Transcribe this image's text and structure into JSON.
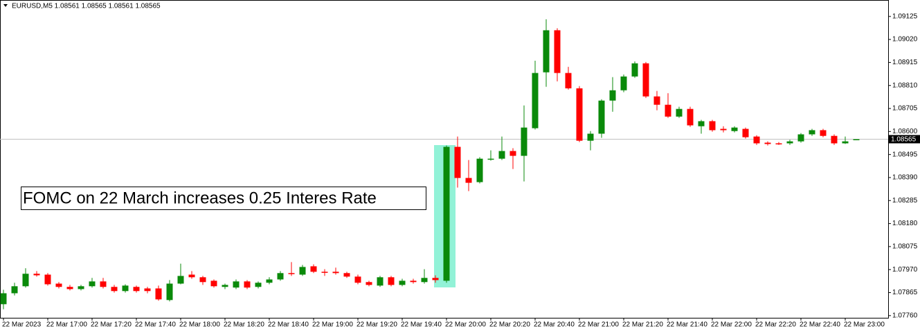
{
  "chart_data": {
    "type": "candlestick",
    "title": "EURUSD,M5  1.08561 1.08565 1.08561 1.08565",
    "annotation": "FOMC on 22 March increases 0.25 Interes Rate",
    "categories": [
      "22 Mar 2023",
      null,
      null,
      null,
      "22 Mar 17:00",
      null,
      null,
      null,
      "22 Mar 17:20",
      null,
      null,
      null,
      "22 Mar 17:40",
      null,
      null,
      null,
      "22 Mar 18:00",
      null,
      null,
      null,
      "22 Mar 18:20",
      null,
      null,
      null,
      "22 Mar 18:40",
      null,
      null,
      null,
      "22 Mar 19:00",
      null,
      null,
      null,
      "22 Mar 19:20",
      null,
      null,
      null,
      "22 Mar 19:40",
      null,
      null,
      null,
      "22 Mar 20:00",
      null,
      null,
      null,
      "22 Mar 20:20",
      null,
      null,
      null,
      "22 Mar 20:40",
      null,
      null,
      null,
      "22 Mar 21:00",
      null,
      null,
      null,
      "22 Mar 21:20",
      null,
      null,
      null,
      "22 Mar 21:40",
      null,
      null,
      null,
      "22 Mar 22:00",
      null,
      null,
      null,
      "22 Mar 22:20",
      null,
      null,
      null,
      "22 Mar 22:40",
      null,
      null,
      null,
      "22 Mar 23:00",
      null
    ],
    "open": [
      1.07812,
      1.07862,
      1.07894,
      1.07951,
      1.07947,
      1.07906,
      1.07891,
      1.07881,
      1.07894,
      1.07916,
      1.07891,
      1.07872,
      1.07891,
      1.07884,
      1.07884,
      1.07831,
      1.07906,
      1.07947,
      1.07935,
      1.07919,
      1.07891,
      1.07888,
      1.07916,
      1.07891,
      1.0791,
      1.07925,
      1.07954,
      1.07947,
      1.07985,
      1.0796,
      1.0796,
      1.07954,
      1.07938,
      1.07913,
      1.07897,
      1.07935,
      1.079,
      1.07919,
      1.07913,
      1.07932,
      1.07919,
      1.0853,
      1.08388,
      1.08369,
      1.08473,
      1.08476,
      1.08511,
      1.08489,
      1.08615,
      1.0887,
      1.09062,
      1.08867,
      1.08797,
      1.08558,
      1.0859,
      1.08741,
      1.08788,
      1.08851,
      1.08911,
      1.0876,
      1.08722,
      1.08668,
      1.08703,
      1.08624,
      1.08647,
      1.08612,
      1.08602,
      1.08612,
      1.08577,
      1.08549,
      1.08546,
      1.08546,
      1.08555,
      1.08587,
      1.08606,
      1.0858,
      1.08546,
      1.08561
    ],
    "high": [
      1.07878,
      1.0791,
      1.07976,
      1.07963,
      1.07954,
      1.07913,
      1.079,
      1.079,
      1.07932,
      1.07932,
      1.079,
      1.07903,
      1.07897,
      1.07891,
      1.07897,
      1.07922,
      1.07997,
      1.07963,
      1.07941,
      1.07925,
      1.07906,
      1.07925,
      1.07922,
      1.07916,
      1.07935,
      1.07963,
      1.08004,
      1.07991,
      1.07994,
      1.07972,
      1.07979,
      1.0796,
      1.07947,
      1.07919,
      1.07941,
      1.07941,
      1.07928,
      1.07928,
      1.07972,
      1.07944,
      1.08536,
      1.08577,
      1.0847,
      1.08483,
      1.08514,
      1.08577,
      1.08524,
      1.08719,
      1.08923,
      1.09112,
      1.09071,
      1.08895,
      1.08807,
      1.08602,
      1.08747,
      1.08848,
      1.0886,
      1.0892,
      1.08917,
      1.08785,
      1.08775,
      1.08713,
      1.08713,
      1.08653,
      1.08653,
      1.08624,
      1.08624,
      1.08618,
      1.08583,
      1.08555,
      1.08552,
      1.08562,
      1.08593,
      1.08612,
      1.08612,
      1.08587,
      1.08577,
      1.08565
    ],
    "low": [
      1.07789,
      1.07852,
      1.07888,
      1.07938,
      1.07897,
      1.07884,
      1.07875,
      1.07875,
      1.07888,
      1.07884,
      1.07865,
      1.07865,
      1.07865,
      1.07862,
      1.07828,
      1.07825,
      1.07903,
      1.07928,
      1.079,
      1.07888,
      1.07881,
      1.07881,
      1.07881,
      1.07884,
      1.07903,
      1.07919,
      1.07941,
      1.07941,
      1.07954,
      1.07941,
      1.07947,
      1.07932,
      1.07903,
      1.07894,
      1.07891,
      1.07894,
      1.07894,
      1.07906,
      1.07906,
      1.0791,
      1.0791,
      1.08344,
      1.08328,
      1.08363,
      1.08467,
      1.0847,
      1.08429,
      1.08372,
      1.08609,
      1.08804,
      1.08829,
      1.08791,
      1.08552,
      1.08514,
      1.08571,
      1.0869,
      1.08779,
      1.08845,
      1.08753,
      1.08697,
      1.08662,
      1.08662,
      1.08621,
      1.0859,
      1.08599,
      1.08596,
      1.08596,
      1.08568,
      1.08539,
      1.08536,
      1.08539,
      1.08539,
      1.08549,
      1.0858,
      1.08574,
      1.08539,
      1.08543,
      1.08561
    ],
    "close": [
      1.07862,
      1.07894,
      1.07951,
      1.07944,
      1.07903,
      1.07891,
      1.07881,
      1.07894,
      1.07916,
      1.07891,
      1.07872,
      1.07897,
      1.07872,
      1.07872,
      1.07834,
      1.07906,
      1.07941,
      1.07935,
      1.07913,
      1.07894,
      1.079,
      1.07916,
      1.07888,
      1.0791,
      1.07925,
      1.07954,
      1.07951,
      1.07982,
      1.0796,
      1.07957,
      1.07954,
      1.07938,
      1.0791,
      1.079,
      1.07935,
      1.079,
      1.07919,
      1.07913,
      1.07932,
      1.07922,
      1.0853,
      1.08388,
      1.08366,
      1.08476,
      1.08476,
      1.08511,
      1.08489,
      1.08618,
      1.08867,
      1.09062,
      1.08867,
      1.08797,
      1.08558,
      1.0859,
      1.08741,
      1.08788,
      1.08851,
      1.08911,
      1.0876,
      1.08722,
      1.08668,
      1.08703,
      1.08628,
      1.08647,
      1.08606,
      1.08606,
      1.08618,
      1.08574,
      1.08546,
      1.08543,
      1.08545,
      1.08555,
      1.08587,
      1.08606,
      1.0858,
      1.08546,
      1.08555,
      1.08565
    ],
    "up_color": "#0a8a0a",
    "down_color": "#ff0000",
    "current_price": 1.08565,
    "ylim": [
      1.0775,
      1.092
    ],
    "yticks": [
      1.09125,
      {
        "value": 1.0902,
        "label": "1.09020"
      },
      1.08915,
      {
        "value": 1.0881,
        "label": "1.08810"
      },
      1.08705,
      {
        "value": 1.086,
        "label": "1.08600"
      },
      1.08495,
      {
        "value": 1.0839,
        "label": "1.08390"
      },
      1.08285,
      {
        "value": 1.0818,
        "label": "1.08180"
      },
      1.08075,
      {
        "value": 1.0797,
        "label": "1.07970"
      },
      1.07865,
      {
        "value": 1.0776,
        "label": "1.07760"
      }
    ],
    "grid": false
  }
}
